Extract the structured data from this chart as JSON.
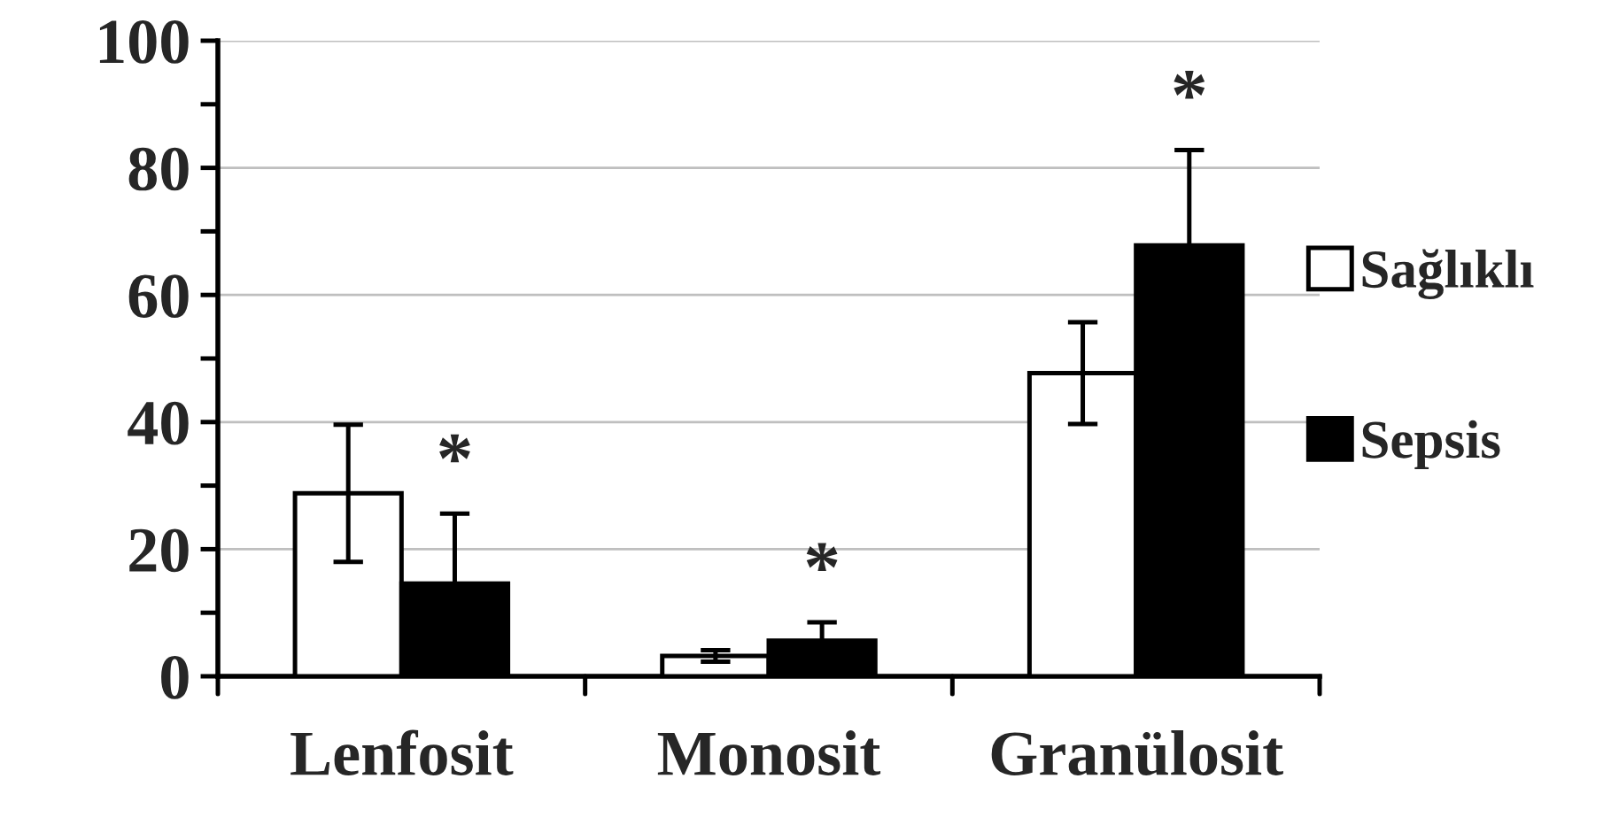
{
  "chart_data": {
    "type": "bar",
    "categories": [
      "Lenfosit",
      "Monosit",
      "Granülosit"
    ],
    "series": [
      {
        "name": "Sağlıklı",
        "color": "#ffffff",
        "values": [
          28.8,
          3.2,
          47.7
        ],
        "errors": [
          10.8,
          0.9,
          8
        ]
      },
      {
        "name": "Sepsis",
        "color": "#000000",
        "values": [
          14.6,
          5.6,
          67.8
        ],
        "errors": [
          11,
          2.9,
          15
        ]
      }
    ],
    "ylim": [
      0,
      100
    ],
    "yticks": [
      0,
      {
        "value": 10,
        "label": null
      },
      20,
      {
        "value": 30,
        "label": null
      },
      40,
      {
        "value": 50,
        "label": null
      },
      60,
      {
        "value": 70,
        "label": null
      },
      80,
      {
        "value": 90,
        "label": null
      },
      100
    ],
    "grid": "y",
    "legend": "right",
    "annotations": [
      "*",
      "*",
      "*"
    ]
  }
}
